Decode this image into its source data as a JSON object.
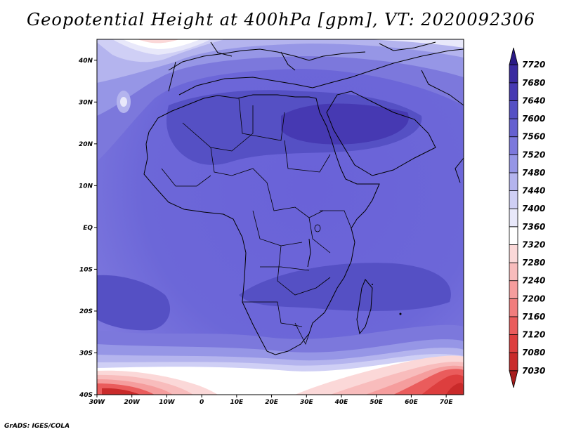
{
  "title": "Geopotential Height at 400hPa [gpm], VT: 2020092306",
  "credit": "GrADS: IGES/COLA",
  "map": {
    "lat_labels": [
      "40N",
      "30N",
      "20N",
      "10N",
      "EQ",
      "10S",
      "20S",
      "30S",
      "40S"
    ],
    "lon_labels": [
      "30W",
      "20W",
      "10W",
      "0",
      "10E",
      "20E",
      "30E",
      "40E",
      "50E",
      "60E",
      "70E"
    ],
    "lat_range": [
      -40,
      45
    ],
    "lon_range": [
      -30,
      75
    ]
  },
  "colorbar": {
    "levels": [
      "7030",
      "7080",
      "7120",
      "7160",
      "7200",
      "7240",
      "7280",
      "7320",
      "7360",
      "7400",
      "7440",
      "7480",
      "7520",
      "7560",
      "7600",
      "7640",
      "7680",
      "7720"
    ],
    "colors": [
      "#a81c1c",
      "#c92a2a",
      "#dd3e3e",
      "#ea5c5c",
      "#f17d7d",
      "#f59d9d",
      "#f8bcbc",
      "#fbd8d8",
      "#ffffff",
      "#e8e8fa",
      "#cfcff5",
      "#b4b4ee",
      "#9696e6",
      "#7c78dc",
      "#6560d0",
      "#5550c4",
      "#4639b2",
      "#3a2aa0",
      "#2a1a85"
    ]
  }
}
